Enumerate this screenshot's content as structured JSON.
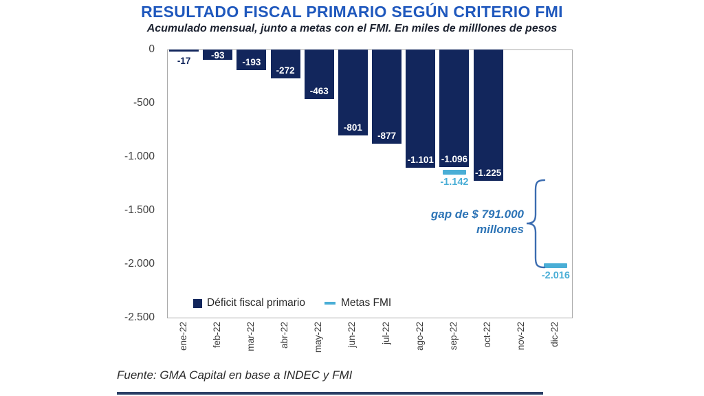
{
  "chart_data": {
    "type": "bar",
    "title": "RESULTADO FISCAL PRIMARIO SEGÚN CRITERIO FMI",
    "subtitle": "Acumulado mensual, junto a metas con el FMI. En miles de milllones de pesos",
    "categories": [
      "ene-22",
      "feb-22",
      "mar-22",
      "abr-22",
      "may-22",
      "jun-22",
      "jul-22",
      "ago-22",
      "sep-22",
      "oct-22",
      "nov-22",
      "dic-22"
    ],
    "series": [
      {
        "name": "Déficit fiscal primario",
        "type": "bar",
        "color": "#12265c",
        "values": [
          -17,
          -93,
          -193,
          -272,
          -463,
          -801,
          -877,
          -1101,
          -1096,
          -1225,
          null,
          null
        ],
        "labels": [
          "-17",
          "-93",
          "-193",
          "-272",
          "-463",
          "-801",
          "-877",
          "-1.101",
          "-1.096",
          "-1.225",
          null,
          null
        ]
      },
      {
        "name": "Metas FMI",
        "type": "dash",
        "color": "#4aaed6",
        "values": [
          null,
          null,
          null,
          null,
          null,
          null,
          null,
          null,
          -1142,
          null,
          null,
          -2016
        ],
        "labels": [
          null,
          null,
          null,
          null,
          null,
          null,
          null,
          null,
          "-1.142",
          null,
          null,
          "-2.016"
        ]
      }
    ],
    "ylim": [
      -2500,
      0
    ],
    "yticks": [
      0,
      -500,
      -1000,
      -1500,
      -2000,
      -2500
    ],
    "ytick_labels": [
      "0",
      "-500",
      "-1.000",
      "-1.500",
      "-2.000",
      "-2.500"
    ],
    "grid": false,
    "legend_position": "bottom-inside",
    "annotation": {
      "line1": "gap de $ 791.000",
      "line2": "millones",
      "color": "#2d74b6"
    },
    "colors": {
      "bar": "#12265c",
      "meta": "#4aaed6",
      "title": "#1f58bd",
      "annotation": "#2d74b6",
      "brace": "#3b6cb0",
      "axis_text": "#3f3f3f",
      "plot_border": "#a9a9a9"
    }
  },
  "footer": {
    "source": "Fuente: GMA Capital en base a INDEC y FMI"
  }
}
